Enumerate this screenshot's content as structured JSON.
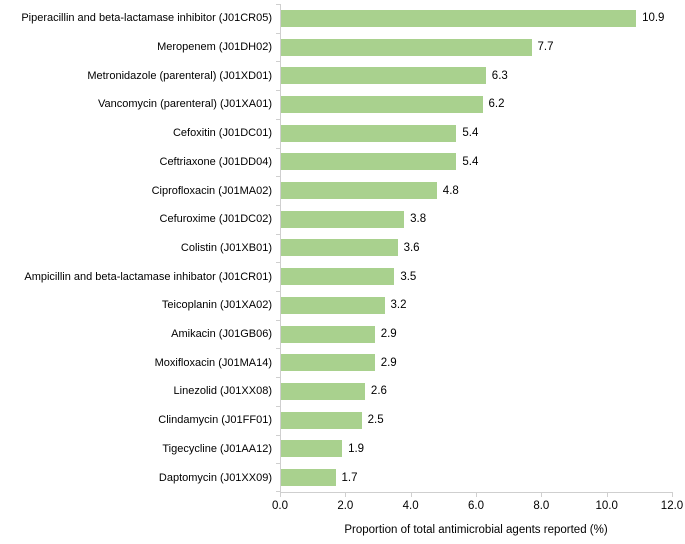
{
  "chart_data": {
    "type": "bar",
    "orientation": "horizontal",
    "title": "",
    "xlabel": "Proportion of total antimicrobial agents reported (%)",
    "ylabel": "",
    "categories": [
      "Piperacillin and beta-lactamase inhibitor (J01CR05)",
      "Meropenem (J01DH02)",
      "Metronidazole (parenteral) (J01XD01)",
      "Vancomycin (parenteral) (J01XA01)",
      "Cefoxitin (J01DC01)",
      "Ceftriaxone (J01DD04)",
      "Ciprofloxacin (J01MA02)",
      "Cefuroxime (J01DC02)",
      "Colistin (J01XB01)",
      "Ampicillin and beta-lactamase inhibator (J01CR01)",
      "Teicoplanin (J01XA02)",
      "Amikacin (J01GB06)",
      "Moxifloxacin (J01MA14)",
      "Linezolid (J01XX08)",
      "Clindamycin (J01FF01)",
      "Tigecycline (J01AA12)",
      "Daptomycin (J01XX09)"
    ],
    "values": [
      10.9,
      7.7,
      6.3,
      6.2,
      5.4,
      5.4,
      4.8,
      3.8,
      3.6,
      3.5,
      3.2,
      2.9,
      2.9,
      2.6,
      2.5,
      1.9,
      1.7
    ],
    "value_labels": [
      "10.9",
      "7.7",
      "6.3",
      "6.2",
      "5.4",
      "5.4",
      "4.8",
      "3.8",
      "3.6",
      "3.5",
      "3.2",
      "2.9",
      "2.9",
      "2.6",
      "2.5",
      "1.9",
      "1.7"
    ],
    "xlim": [
      0,
      12
    ],
    "xticks": [
      0,
      2,
      4,
      6,
      8,
      10,
      12
    ],
    "xtick_labels": [
      "0.0",
      "2.0",
      "4.0",
      "6.0",
      "8.0",
      "10.0",
      "12.0"
    ],
    "bar_color": "#a9d18e",
    "axis_line_color": "#cfcfcf",
    "grid": false,
    "legend": null,
    "data_labels_shown": true
  }
}
